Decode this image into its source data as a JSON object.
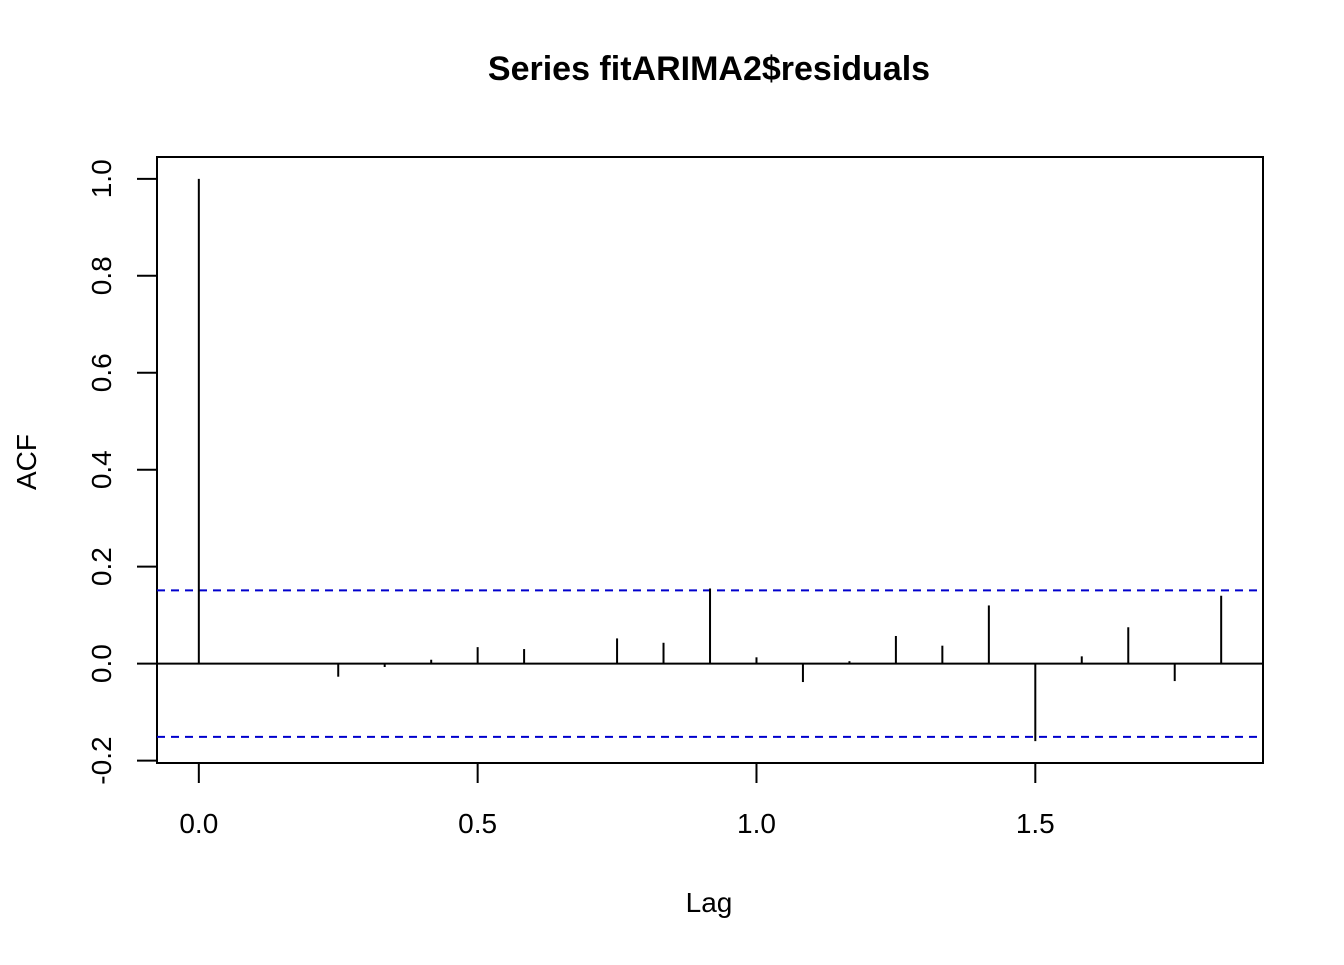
{
  "chart_data": {
    "type": "bar",
    "title": "Series  fitARIMA2$residuals",
    "xlabel": "Lag",
    "ylabel": "ACF",
    "xlim": [
      -0.075,
      1.9083
    ],
    "ylim": [
      -0.205,
      1.045
    ],
    "x_ticks": [
      {
        "value": 0.0,
        "label": "0.0"
      },
      {
        "value": 0.5,
        "label": "0.5"
      },
      {
        "value": 1.0,
        "label": "1.0"
      },
      {
        "value": 1.5,
        "label": "1.5"
      }
    ],
    "y_ticks": [
      {
        "value": -0.2,
        "label": "-0.2"
      },
      {
        "value": 0.0,
        "label": "0.0"
      },
      {
        "value": 0.2,
        "label": "0.2"
      },
      {
        "value": 0.4,
        "label": "0.4"
      },
      {
        "value": 0.6,
        "label": "0.6"
      },
      {
        "value": 0.8,
        "label": "0.8"
      },
      {
        "value": 1.0,
        "label": "1.0"
      }
    ],
    "lags": [
      0.0,
      0.0833,
      0.1667,
      0.25,
      0.3333,
      0.4167,
      0.5,
      0.5833,
      0.6667,
      0.75,
      0.8333,
      0.9167,
      1.0,
      1.0833,
      1.1667,
      1.25,
      1.3333,
      1.4167,
      1.5,
      1.5833,
      1.6667,
      1.75,
      1.8333
    ],
    "values": [
      1.0,
      0.0,
      0.0,
      -0.027,
      -0.007,
      0.008,
      0.034,
      0.03,
      0.0,
      0.052,
      0.043,
      0.155,
      0.013,
      -0.038,
      0.005,
      0.057,
      0.037,
      0.12,
      -0.16,
      0.015,
      0.075,
      -0.036,
      0.14
    ],
    "confidence_bound": 0.151,
    "colors": {
      "bars": "#000000",
      "confidence": "#0000cd",
      "zero_line": "#000000",
      "frame": "#000000"
    },
    "grid": false,
    "legend": "none"
  }
}
